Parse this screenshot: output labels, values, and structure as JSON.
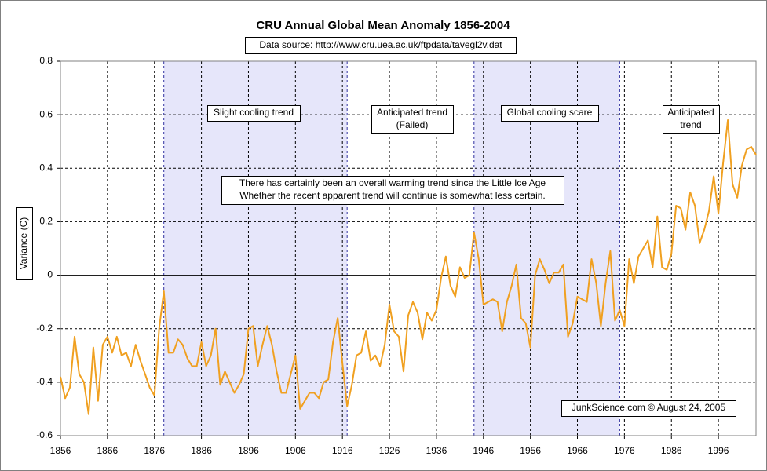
{
  "chart_data": {
    "type": "line",
    "title": "CRU Annual Global Mean Anomaly 1856-2004",
    "subtitle": "Data source: http://www.cru.uea.ac.uk/ftpdata/tavegl2v.dat",
    "y_label": "Variance (C)",
    "annotations": [
      [
        "Slight cooling trend"
      ],
      [
        "Anticipated trend",
        "(Failed)"
      ],
      [
        "Global cooling scare"
      ],
      [
        "Anticipated",
        "trend"
      ],
      [
        "There has certainly been an overall warming trend since the Little Ice Age",
        "Whether the recent apparent trend will continue is somewhat less certain."
      ],
      [
        "JunkScience.com © August 24, 2005"
      ]
    ],
    "bands": [
      [
        1878,
        1917
      ],
      [
        1944,
        1975
      ]
    ],
    "band_color": "#e6e6fa",
    "color": "#f0a020",
    "grid": true,
    "xlim": [
      1856,
      2004
    ],
    "xticks": [
      1856,
      1866,
      1876,
      1886,
      1896,
      1906,
      1916,
      1926,
      1936,
      1946,
      1956,
      1966,
      1976,
      1986,
      1996
    ],
    "ylim": [
      -0.6,
      0.8
    ],
    "yticks": [
      -0.6,
      -0.4,
      -0.2,
      0,
      0.2,
      0.4,
      0.6,
      0.8
    ],
    "x": [
      1856,
      1857,
      1858,
      1859,
      1860,
      1861,
      1862,
      1863,
      1864,
      1865,
      1866,
      1867,
      1868,
      1869,
      1870,
      1871,
      1872,
      1873,
      1874,
      1875,
      1876,
      1877,
      1878,
      1879,
      1880,
      1881,
      1882,
      1883,
      1884,
      1885,
      1886,
      1887,
      1888,
      1889,
      1890,
      1891,
      1892,
      1893,
      1894,
      1895,
      1896,
      1897,
      1898,
      1899,
      1900,
      1901,
      1902,
      1903,
      1904,
      1905,
      1906,
      1907,
      1908,
      1909,
      1910,
      1911,
      1912,
      1913,
      1914,
      1915,
      1916,
      1917,
      1918,
      1919,
      1920,
      1921,
      1922,
      1923,
      1924,
      1925,
      1926,
      1927,
      1928,
      1929,
      1930,
      1931,
      1932,
      1933,
      1934,
      1935,
      1936,
      1937,
      1938,
      1939,
      1940,
      1941,
      1942,
      1943,
      1944,
      1945,
      1946,
      1947,
      1948,
      1949,
      1950,
      1951,
      1952,
      1953,
      1954,
      1955,
      1956,
      1957,
      1958,
      1959,
      1960,
      1961,
      1962,
      1963,
      1964,
      1965,
      1966,
      1967,
      1968,
      1969,
      1970,
      1971,
      1972,
      1973,
      1974,
      1975,
      1976,
      1977,
      1978,
      1979,
      1980,
      1981,
      1982,
      1983,
      1984,
      1985,
      1986,
      1987,
      1988,
      1989,
      1990,
      1991,
      1992,
      1993,
      1994,
      1995,
      1996,
      1997,
      1998,
      1999,
      2000,
      2001,
      2002,
      2003,
      2004
    ],
    "values": [
      -0.38,
      -0.46,
      -0.42,
      -0.23,
      -0.37,
      -0.4,
      -0.52,
      -0.27,
      -0.47,
      -0.26,
      -0.23,
      -0.29,
      -0.23,
      -0.3,
      -0.29,
      -0.34,
      -0.26,
      -0.32,
      -0.37,
      -0.42,
      -0.45,
      -0.2,
      -0.06,
      -0.29,
      -0.29,
      -0.24,
      -0.26,
      -0.31,
      -0.34,
      -0.34,
      -0.25,
      -0.34,
      -0.3,
      -0.2,
      -0.41,
      -0.36,
      -0.4,
      -0.44,
      -0.41,
      -0.37,
      -0.2,
      -0.19,
      -0.34,
      -0.26,
      -0.19,
      -0.26,
      -0.36,
      -0.44,
      -0.44,
      -0.37,
      -0.3,
      -0.5,
      -0.47,
      -0.44,
      -0.44,
      -0.46,
      -0.4,
      -0.39,
      -0.25,
      -0.16,
      -0.33,
      -0.49,
      -0.41,
      -0.3,
      -0.29,
      -0.21,
      -0.32,
      -0.3,
      -0.34,
      -0.26,
      -0.11,
      -0.21,
      -0.23,
      -0.36,
      -0.15,
      -0.1,
      -0.14,
      -0.24,
      -0.14,
      -0.17,
      -0.13,
      -0.01,
      0.07,
      -0.04,
      -0.08,
      0.03,
      -0.01,
      0.0,
      0.16,
      0.06,
      -0.11,
      -0.1,
      -0.09,
      -0.1,
      -0.21,
      -0.1,
      -0.04,
      0.04,
      -0.16,
      -0.18,
      -0.27,
      0.0,
      0.06,
      0.02,
      -0.03,
      0.01,
      0.01,
      0.04,
      -0.23,
      -0.18,
      -0.08,
      -0.09,
      -0.1,
      0.06,
      -0.03,
      -0.19,
      -0.03,
      0.09,
      -0.17,
      -0.13,
      -0.19,
      0.06,
      -0.03,
      0.07,
      0.1,
      0.13,
      0.03,
      0.22,
      0.03,
      0.02,
      0.08,
      0.26,
      0.25,
      0.17,
      0.31,
      0.26,
      0.12,
      0.17,
      0.24,
      0.37,
      0.23,
      0.42,
      0.58,
      0.34,
      0.29,
      0.41,
      0.47,
      0.48,
      0.45
    ]
  }
}
